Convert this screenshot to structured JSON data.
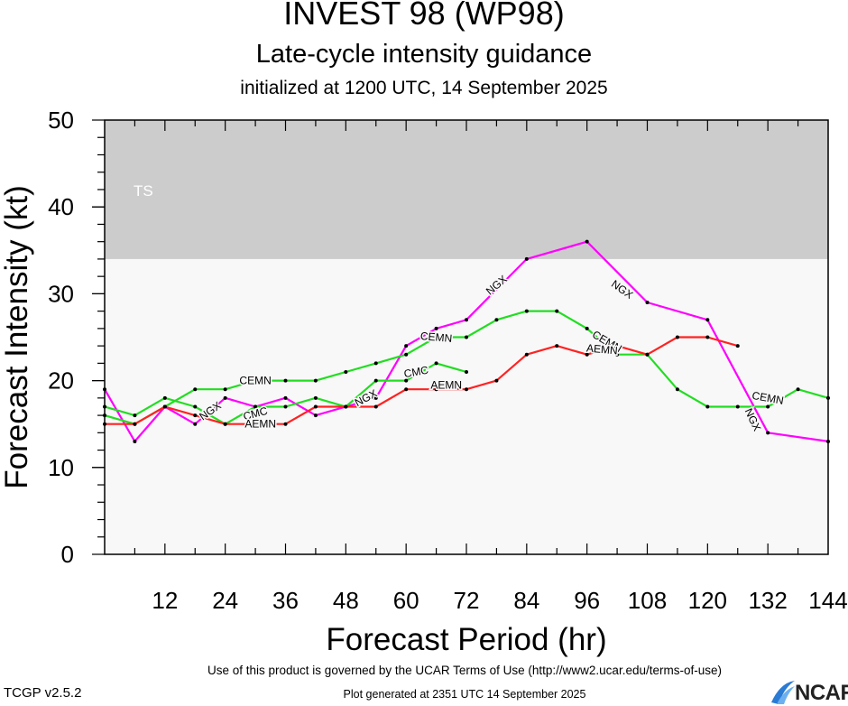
{
  "header": {
    "title": "INVEST 98 (WP98)",
    "subtitle": "Late-cycle intensity guidance",
    "init_line": "initialized at 1200 UTC, 14 September 2025"
  },
  "footer": {
    "terms": "Use of this product is governed by the UCAR Terms of Use (http://www2.ucar.edu/terms-of-use)",
    "version": "TCGP v2.5.2",
    "generated": "Plot generated at 2351 UTC   14 September 2025",
    "logo_text": "NCAR"
  },
  "chart_data": {
    "type": "line",
    "xlabel": "Forecast Period (hr)",
    "ylabel": "Forecast Intensity (kt)",
    "xlim": [
      0,
      144
    ],
    "ylim": [
      0,
      50
    ],
    "xticks": [
      12,
      24,
      36,
      48,
      60,
      72,
      84,
      96,
      108,
      120,
      132,
      144
    ],
    "yticks": [
      0,
      10,
      20,
      30,
      40,
      50
    ],
    "bands": [
      {
        "label": "TS",
        "from": 34,
        "to": 50,
        "color": "#cccccc"
      }
    ],
    "plot_background": "#f8f8f8",
    "series": [
      {
        "name": "NGX",
        "color": "#ff00ff",
        "x": [
          0,
          6,
          12,
          18,
          24,
          30,
          36,
          42,
          48,
          54,
          60,
          66,
          72,
          84,
          96,
          108,
          120,
          132,
          144
        ],
        "y": [
          19,
          13,
          17,
          15,
          18,
          17,
          18,
          16,
          17,
          18,
          24,
          26,
          27,
          34,
          36,
          29,
          27,
          14,
          13
        ],
        "labels": [
          {
            "x": 21,
            "y": 16.5,
            "rot": -35
          },
          {
            "x": 52,
            "y": 18,
            "rot": -28
          },
          {
            "x": 78,
            "y": 31,
            "rot": -40
          },
          {
            "x": 103,
            "y": 30.5,
            "rot": 35
          },
          {
            "x": 129,
            "y": 15.5,
            "rot": 65
          }
        ]
      },
      {
        "name": "CEMN",
        "color": "#22dd22",
        "x": [
          0,
          6,
          12,
          18,
          24,
          30,
          36,
          42,
          48,
          54,
          60,
          66,
          72,
          78,
          84,
          90,
          96,
          102,
          108,
          114,
          120,
          126,
          132,
          138,
          144
        ],
        "y": [
          16,
          15,
          17,
          19,
          19,
          20,
          20,
          20,
          21,
          22,
          23,
          25,
          25,
          27,
          28,
          28,
          26,
          23,
          23,
          19,
          17,
          17,
          17,
          19,
          18
        ],
        "labels": [
          {
            "x": 30,
            "y": 20,
            "rot": 0
          },
          {
            "x": 66,
            "y": 25,
            "rot": 5
          },
          {
            "x": 100,
            "y": 24.5,
            "rot": 30
          },
          {
            "x": 132,
            "y": 18,
            "rot": 10
          }
        ]
      },
      {
        "name": "CMC",
        "color": "#22dd22",
        "x": [
          0,
          6,
          12,
          18,
          24,
          30,
          36,
          42,
          48,
          54,
          60,
          66,
          72
        ],
        "y": [
          17,
          16,
          18,
          17,
          15,
          17,
          17,
          18,
          17,
          20,
          20,
          22,
          21
        ],
        "labels": [
          {
            "x": 30,
            "y": 16.2,
            "rot": -15
          },
          {
            "x": 62,
            "y": 21,
            "rot": -10
          }
        ]
      },
      {
        "name": "AEMN",
        "color": "#ff2222",
        "x": [
          0,
          6,
          12,
          18,
          24,
          30,
          36,
          42,
          48,
          54,
          60,
          66,
          72,
          78,
          84,
          90,
          96,
          102,
          108,
          114,
          120,
          126
        ],
        "y": [
          15,
          15,
          17,
          16,
          15,
          15,
          15,
          17,
          17,
          17,
          19,
          19,
          19,
          20,
          23,
          24,
          23,
          24,
          23,
          25,
          25,
          24
        ],
        "labels": [
          {
            "x": 31,
            "y": 15,
            "rot": 0
          },
          {
            "x": 68,
            "y": 19.5,
            "rot": 0
          },
          {
            "x": 99,
            "y": 23.6,
            "rot": 5
          }
        ]
      }
    ]
  }
}
